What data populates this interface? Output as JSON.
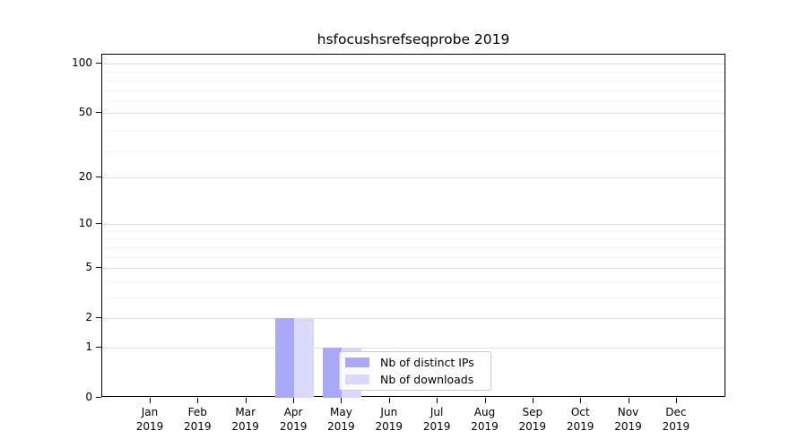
{
  "chart_data": {
    "type": "bar",
    "title": "hsfocushsrefseqprobe 2019",
    "categories": [
      "Jan",
      "Feb",
      "Mar",
      "Apr",
      "May",
      "Jun",
      "Jul",
      "Aug",
      "Sep",
      "Oct",
      "Nov",
      "Dec"
    ],
    "year_label": "2019",
    "series": [
      {
        "name": "Nb of distinct IPs",
        "color": "#a9a9fa",
        "values": [
          0,
          0,
          0,
          2,
          1,
          0,
          0,
          0,
          0,
          0,
          0,
          0
        ]
      },
      {
        "name": "Nb of downloads",
        "color": "#d9d9fa",
        "values": [
          0,
          0,
          0,
          2,
          1,
          0,
          0,
          0,
          0,
          0,
          0,
          0
        ]
      }
    ],
    "yscale": "log1p",
    "ylim": [
      0,
      100
    ],
    "ytick_values": [
      0,
      1,
      2,
      5,
      10,
      20,
      50,
      100
    ],
    "ytick_labels": [
      "0",
      "1",
      "2",
      "5",
      "10",
      "20",
      "50",
      "100"
    ],
    "minor_grid_values": [
      3,
      4,
      6,
      7,
      8,
      9,
      29,
      39,
      59,
      69,
      79,
      89
    ],
    "grid": "horizontal",
    "legend": {
      "position": "lower-right-inside",
      "entries": [
        "Nb of distinct IPs",
        "Nb of downloads"
      ]
    },
    "colors": {
      "bar_distinct_ips": "#a9a9fa",
      "bar_downloads": "#d9d9fa",
      "major_grid": "#dedede",
      "minor_grid": "#f2f2f2",
      "axis": "#000000",
      "background": "#ffffff",
      "legend_border": "#cbcbcb"
    }
  }
}
